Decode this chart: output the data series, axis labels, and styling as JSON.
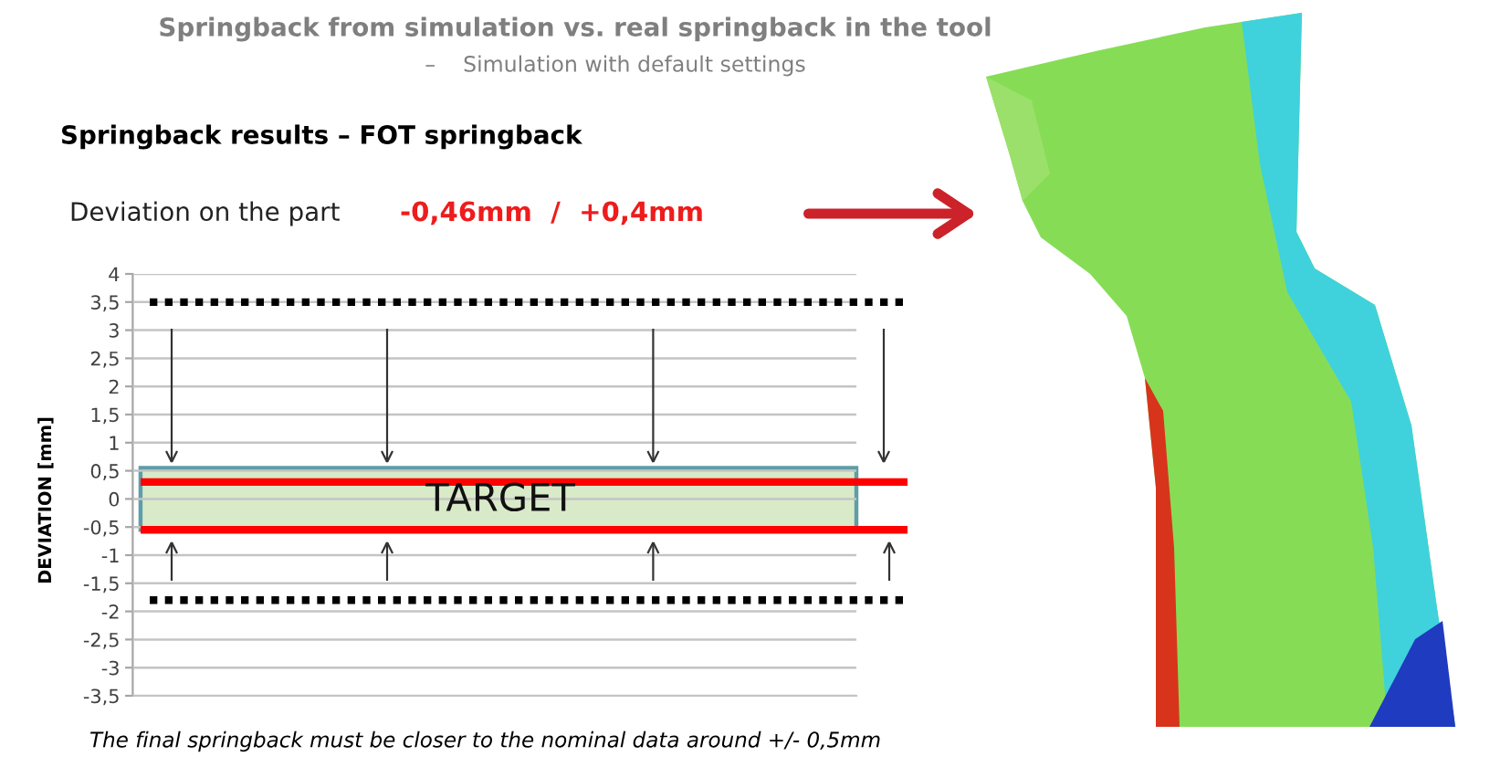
{
  "chart_data": {
    "type": "bar",
    "title": "Springback from simulation vs. real springback in the tool",
    "subtitle": "–    Simulation with default settings",
    "ylabel": "DEVIATION [mm]",
    "categories": [
      null
    ],
    "base": [
      -0.55
    ],
    "values": [
      1.1
    ],
    "color": "#d9eac9",
    "ylim": [
      -3.5,
      4
    ],
    "yticks": [
      4,
      {
        "value": 3.5,
        "label": "3,5"
      },
      3,
      {
        "value": 2.5,
        "label": "2,5"
      },
      2,
      {
        "value": 1.5,
        "label": "1,5"
      },
      1,
      {
        "value": 0.5,
        "label": "0,5"
      },
      0,
      {
        "value": -0.5,
        "label": "-0,5"
      },
      -1,
      {
        "value": -1.5,
        "label": "-1,5"
      },
      -2,
      {
        "value": -2.5,
        "label": "-2,5"
      },
      -3,
      {
        "value": -3.5,
        "label": "-3,5"
      }
    ],
    "grid": "y",
    "tick_labels": "y",
    "ref_lines": [
      {
        "axis": "y",
        "value": 3.5,
        "color": "#000000",
        "line_style": "dotted"
      },
      {
        "axis": "y",
        "value": 0.3,
        "color": "#ff0000",
        "line_style": "solid"
      },
      {
        "axis": "y",
        "value": -0.55,
        "color": "#ff0000",
        "line_style": "solid"
      },
      {
        "axis": "y",
        "value": -1.8,
        "color": "#000000",
        "line_style": "dotted"
      }
    ],
    "annotations": [
      "Springback results – FOT springback",
      "Deviation on the part",
      "-0,46mm  /  +0,4mm",
      "TARGET",
      "The final springback must be closer to the nominal data around +/- 0,5mm"
    ]
  }
}
